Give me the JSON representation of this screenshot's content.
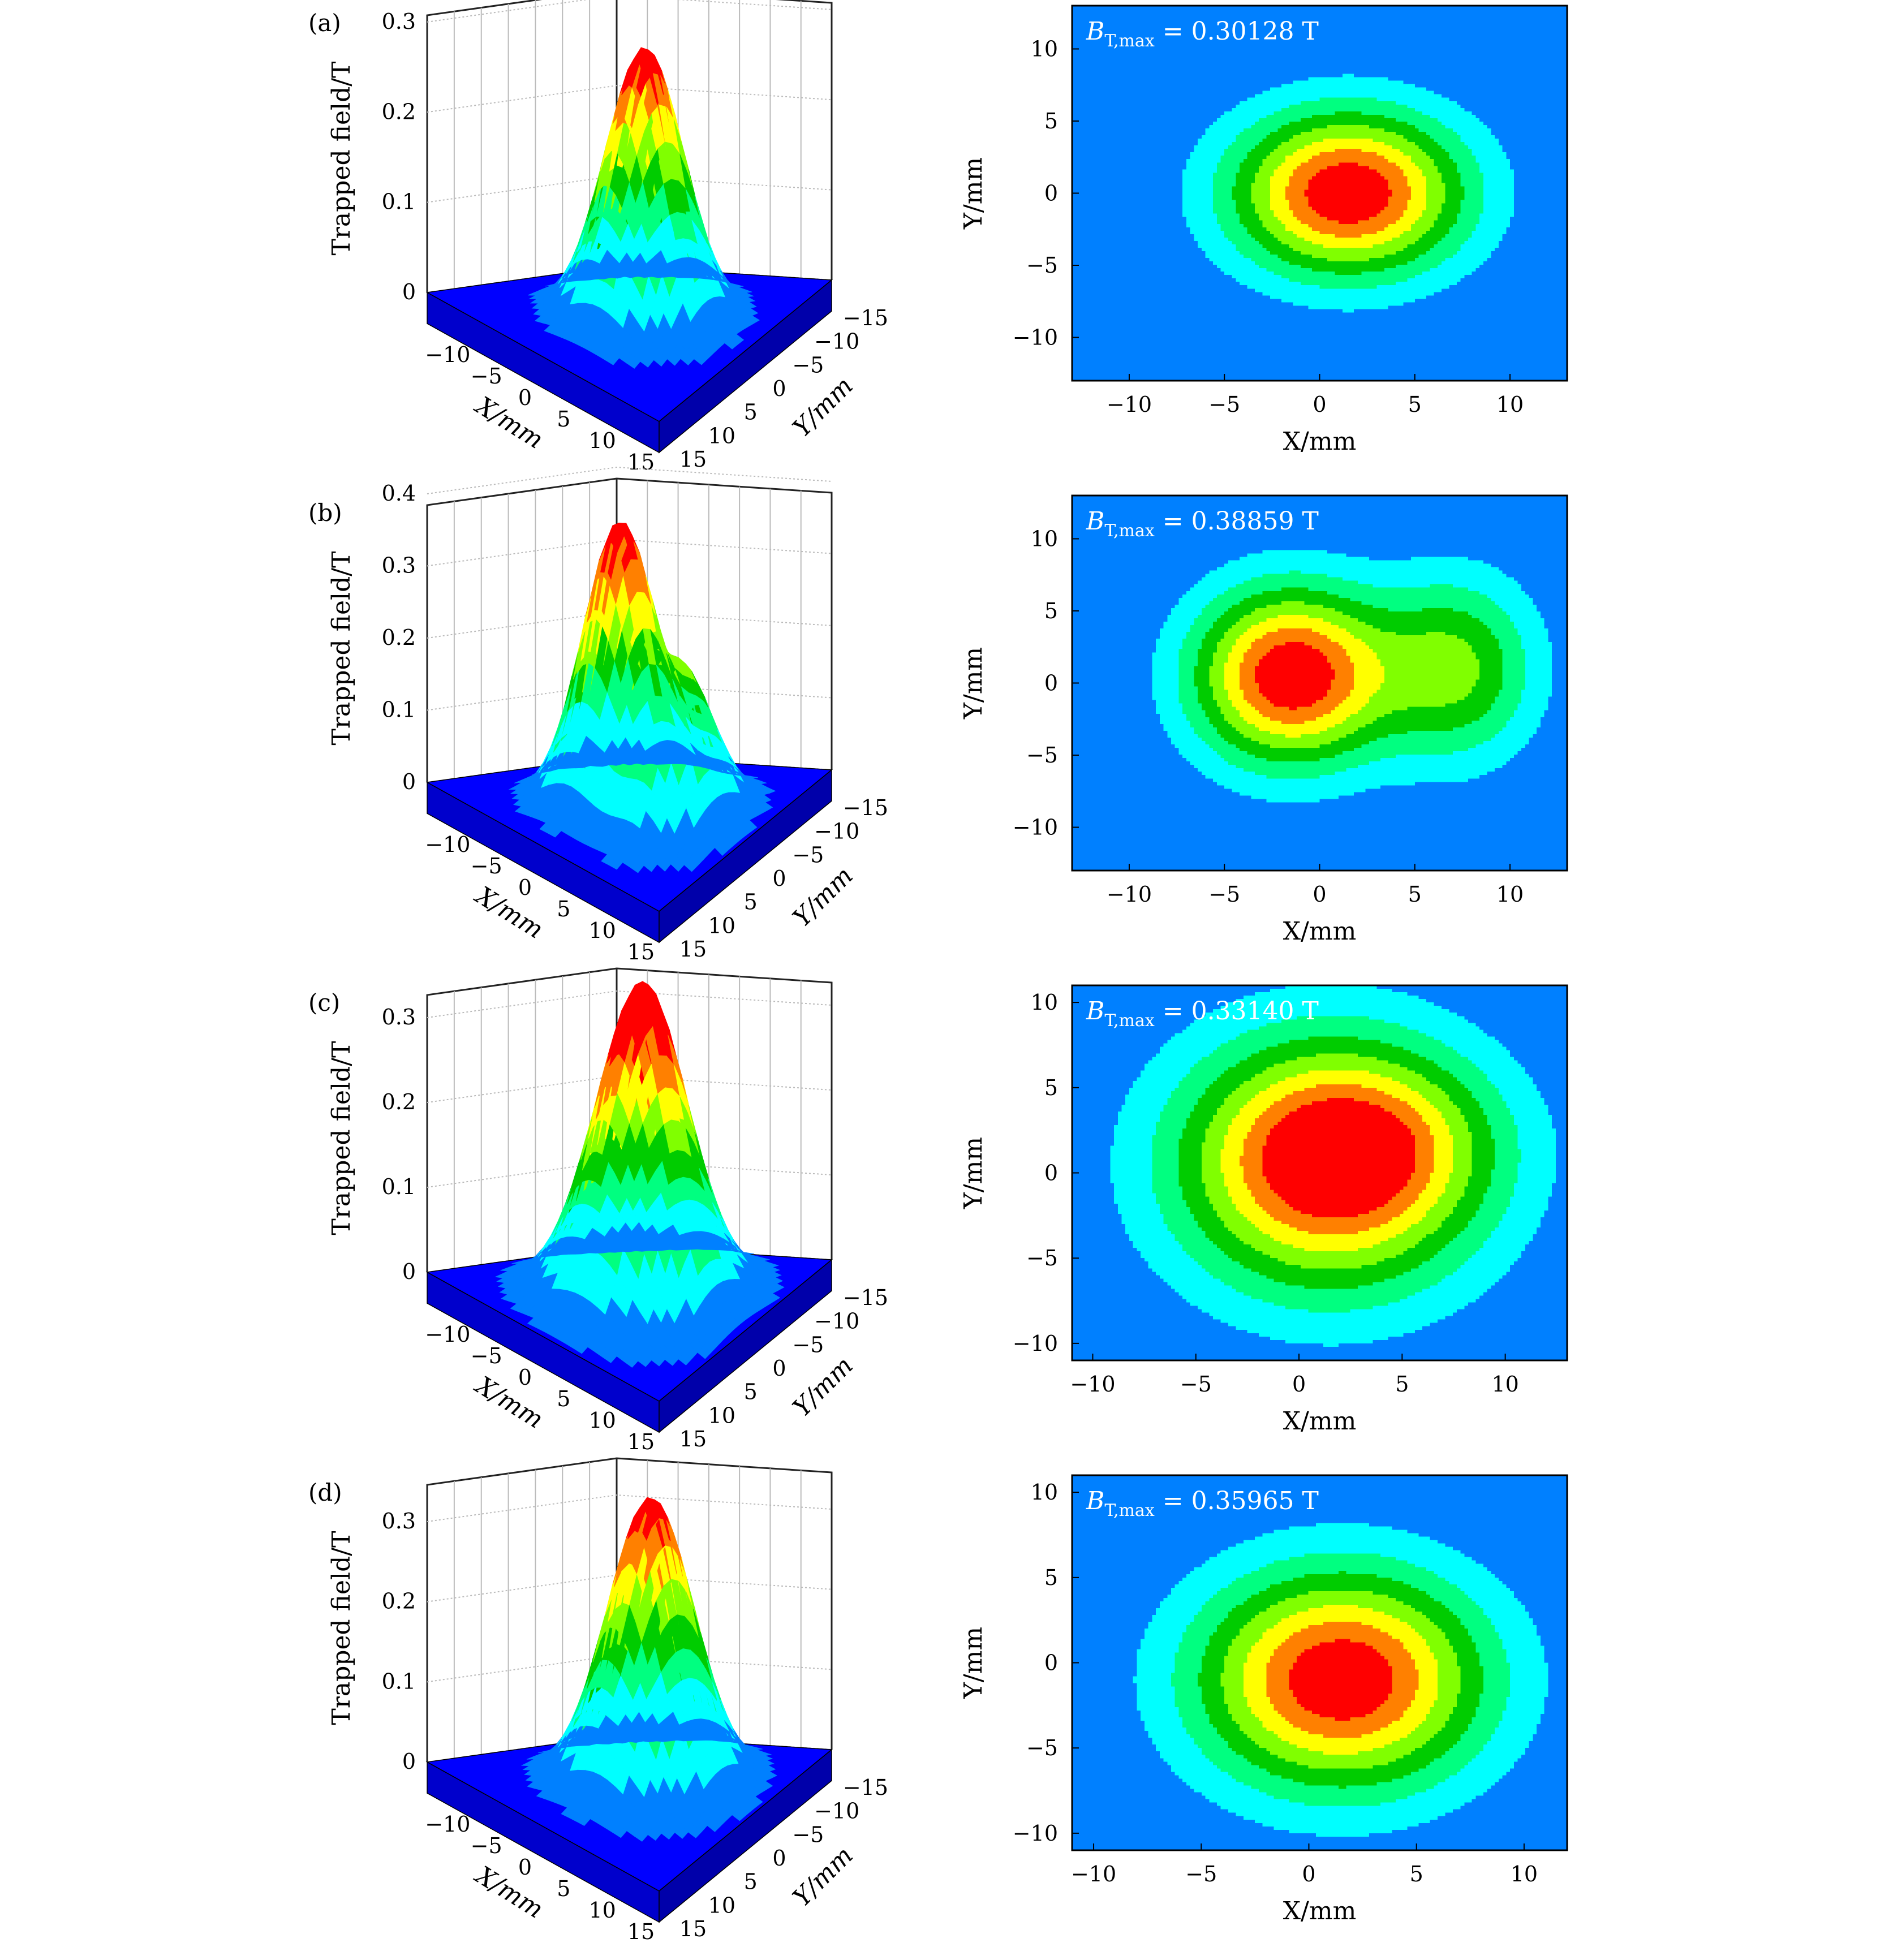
{
  "chart_data": [
    {
      "panel": "(a)",
      "type": "surface",
      "zlabel": "Trapped field/T",
      "xlabel": "X/mm",
      "ylabel": "Y/mm",
      "zticks": [
        "0",
        "0.1",
        "0.2",
        "0.3"
      ],
      "zlim": [
        0,
        0.32
      ],
      "xticks": [
        "−10",
        "−5",
        "0",
        "5",
        "10",
        "15"
      ],
      "yticks": [
        "−15",
        "−10",
        "−5",
        "0",
        "5",
        "10",
        "15"
      ],
      "peak": 0.30128,
      "peaks": [
        {
          "x": 1.5,
          "y": 0.0,
          "amp": 0.30128,
          "sx": 4.3,
          "sy": 4.0
        }
      ],
      "contour": {
        "type": "heatmap",
        "annotation": "B_T,max = 0.30128 T",
        "ann_main": "B",
        "ann_sub": "T,max",
        "ann_value": " = 0.30128 T",
        "xlabel": "X/mm",
        "ylabel": "Y/mm",
        "xticks": [
          "−10",
          "−5",
          "0",
          "5",
          "10"
        ],
        "yticks": [
          "−10",
          "−5",
          "0",
          "5",
          "10"
        ],
        "xlim": [
          -13,
          13
        ],
        "ylim": [
          -13,
          13
        ],
        "plateau": {
          "cx": 1.5,
          "cy": 0.5,
          "rx": 11.5,
          "ry": 10.5
        }
      }
    },
    {
      "panel": "(b)",
      "type": "surface",
      "zlabel": "Trapped field/T",
      "xlabel": "X/mm",
      "ylabel": "Y/mm",
      "zticks": [
        "0",
        "0.1",
        "0.2",
        "0.3",
        "0.4"
      ],
      "zlim": [
        0,
        0.4
      ],
      "xticks": [
        "−10",
        "−5",
        "0",
        "5",
        "10",
        "15"
      ],
      "yticks": [
        "−15",
        "−10",
        "−5",
        "0",
        "5",
        "10",
        "15"
      ],
      "peak": 0.38859,
      "peaks": [
        {
          "x": -1.5,
          "y": 0.5,
          "amp": 0.38859,
          "sx": 3.6,
          "sy": 4.3
        },
        {
          "x": 7.2,
          "y": 1.0,
          "amp": 0.2,
          "sx": 3.0,
          "sy": 4.5
        }
      ],
      "contour": {
        "type": "heatmap",
        "annotation": "B_T,max = 0.38859 T",
        "ann_main": "B",
        "ann_sub": "T,max",
        "ann_value": " = 0.38859 T",
        "xlabel": "X/mm",
        "ylabel": "Y/mm",
        "xticks": [
          "−10",
          "−5",
          "0",
          "5",
          "10"
        ],
        "yticks": [
          "−10",
          "−5",
          "0",
          "5",
          "10"
        ],
        "xlim": [
          -13,
          13
        ],
        "ylim": [
          -13,
          13
        ],
        "plateau": {
          "cx": 1.5,
          "cy": 0.5,
          "rx": 11.0,
          "ry": 10.0
        }
      }
    },
    {
      "panel": "(c)",
      "type": "surface",
      "zlabel": "Trapped field/T",
      "xlabel": "X/mm",
      "ylabel": "Y/mm",
      "zticks": [
        "0",
        "0.1",
        "0.2",
        "0.3"
      ],
      "zlim": [
        0,
        0.34
      ],
      "xticks": [
        "−10",
        "−5",
        "0",
        "5",
        "10",
        "15"
      ],
      "yticks": [
        "−15",
        "−10",
        "−5",
        "0",
        "5",
        "10",
        "15"
      ],
      "peak": 0.3314,
      "peaks": [
        {
          "x": 1.5,
          "y": 0.5,
          "amp": 0.3314,
          "sx": 5.2,
          "sy": 5.2
        },
        {
          "x": 4.0,
          "y": 2.0,
          "amp": 0.06,
          "sx": 4.0,
          "sy": 3.0
        }
      ],
      "contour": {
        "type": "heatmap",
        "annotation": "B_T,max = 0.33140 T",
        "ann_main": "B",
        "ann_sub": "T,max",
        "ann_value": " = 0.33140 T",
        "xlabel": "X/mm",
        "ylabel": "Y/mm",
        "xticks": [
          "−10",
          "−5",
          "0",
          "5",
          "10"
        ],
        "yticks": [
          "−10",
          "−5",
          "0",
          "5",
          "10"
        ],
        "xlim": [
          -11,
          13
        ],
        "ylim": [
          -11,
          11
        ],
        "plateau": {
          "cx": 1.5,
          "cy": 0.0,
          "rx": 11.0,
          "ry": 10.0
        }
      }
    },
    {
      "panel": "(d)",
      "type": "surface",
      "zlabel": "Trapped field/T",
      "xlabel": "X/mm",
      "ylabel": "Y/mm",
      "zticks": [
        "0",
        "0.1",
        "0.2",
        "0.3"
      ],
      "zlim": [
        0,
        0.36
      ],
      "xticks": [
        "−10",
        "−5",
        "0",
        "5",
        "10",
        "15"
      ],
      "yticks": [
        "−15",
        "−10",
        "−5",
        "0",
        "5",
        "10",
        "15"
      ],
      "peak": 0.35965,
      "peaks": [
        {
          "x": 1.5,
          "y": -1.0,
          "amp": 0.35965,
          "sx": 4.7,
          "sy": 4.5
        }
      ],
      "contour": {
        "type": "heatmap",
        "annotation": "B_T,max = 0.35965 T",
        "ann_main": "B",
        "ann_sub": "T,max",
        "ann_value": " = 0.35965 T",
        "xlabel": "X/mm",
        "ylabel": "Y/mm",
        "xticks": [
          "−10",
          "−5",
          "0",
          "5",
          "10"
        ],
        "yticks": [
          "−10",
          "−5",
          "0",
          "5",
          "10"
        ],
        "xlim": [
          -11,
          12
        ],
        "ylim": [
          -11,
          11
        ],
        "plateau": {
          "cx": 1.5,
          "cy": -0.5,
          "rx": 11.0,
          "ry": 10.0
        }
      }
    }
  ],
  "colors": {
    "levels": [
      "#0000ff",
      "#0080ff",
      "#00ffff",
      "#00ff80",
      "#00cc00",
      "#80ff00",
      "#ffff00",
      "#ff8000",
      "#ff0000"
    ],
    "background": "#0000ff"
  }
}
